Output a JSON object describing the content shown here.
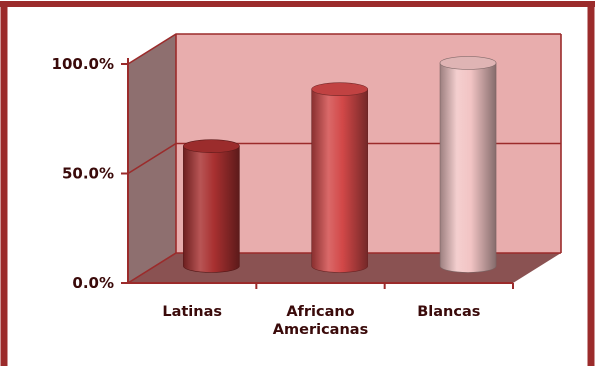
{
  "chart_data": {
    "type": "bar",
    "style": "3d-cylinder",
    "title": "",
    "xlabel": "",
    "ylabel": "",
    "categories": [
      [
        "Latinas"
      ],
      [
        "Africano",
        "Americanas"
      ],
      [
        "Blancas"
      ]
    ],
    "values": [
      0.57,
      0.83,
      0.95
    ],
    "ylim": [
      0,
      1
    ],
    "yticks": [
      {
        "value": 0,
        "label": "0.0%"
      },
      {
        "value": 0.5,
        "label": "50.0%"
      },
      {
        "value": 1,
        "label": "100.0%"
      }
    ],
    "grid": true,
    "legend": "none",
    "colors": {
      "frame": "#9b2b2b",
      "back_wall": "#e8adad",
      "side_wall": "#8e6f6f",
      "floor": "#8a5252",
      "bars": [
        "#a83030",
        "#d24848",
        "#f2c4c4"
      ],
      "text": "#3a0a0a"
    }
  }
}
